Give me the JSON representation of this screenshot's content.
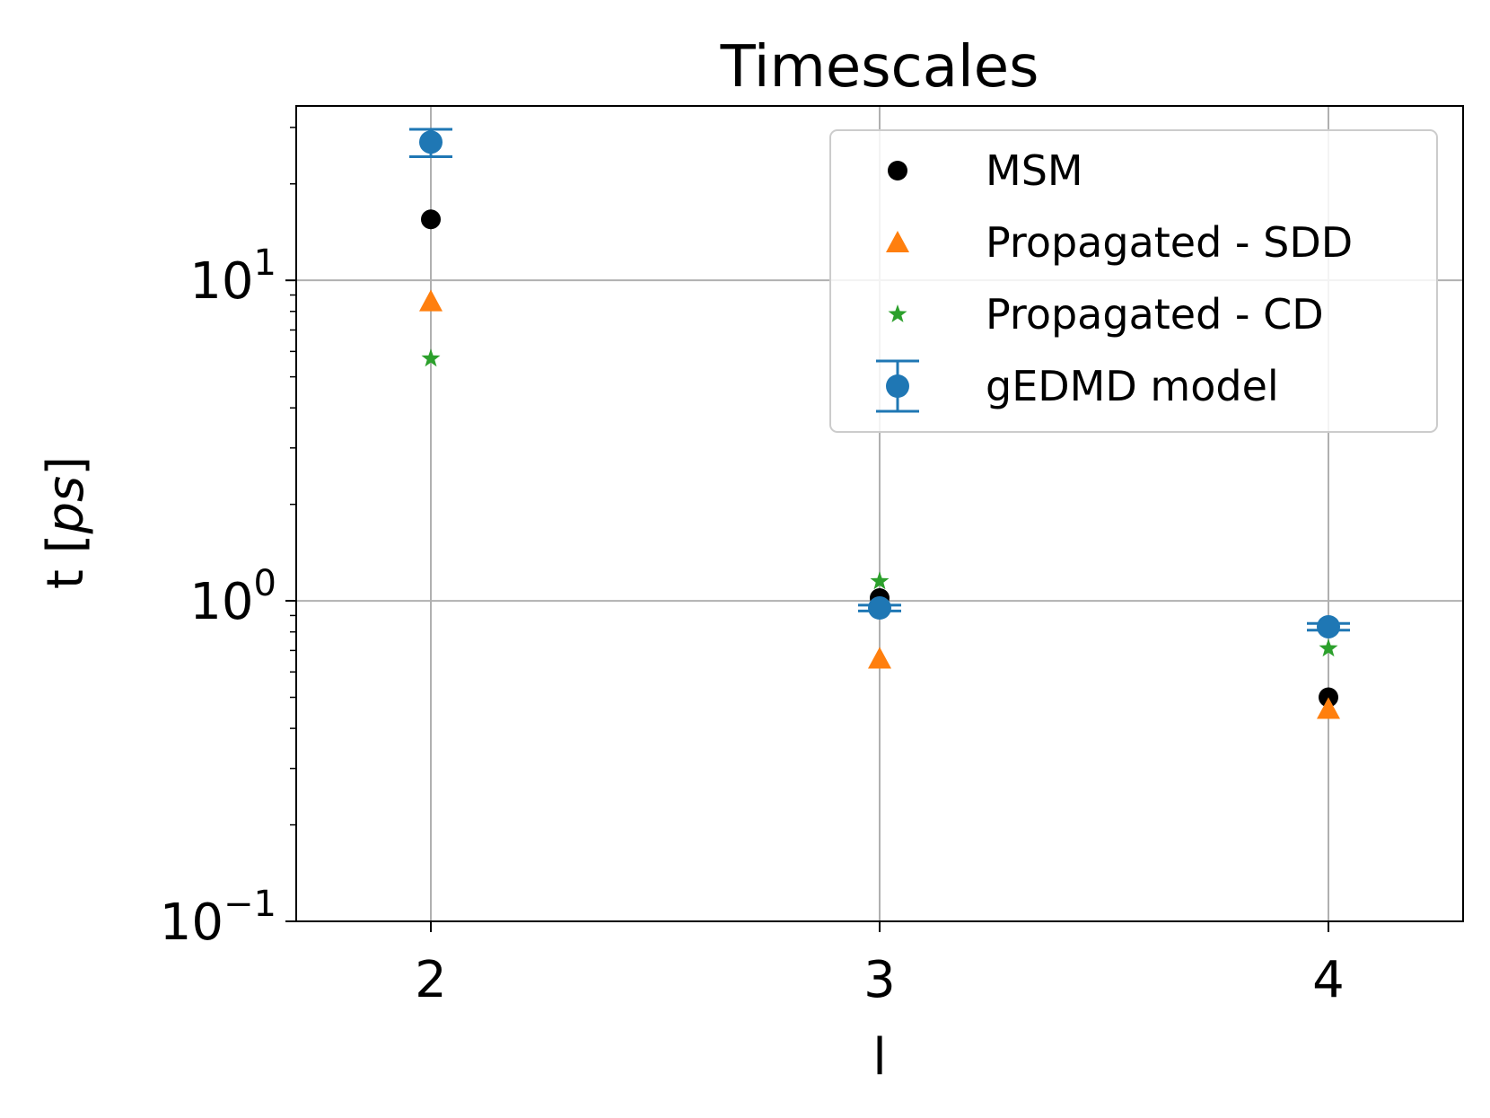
{
  "chart_data": {
    "type": "scatter",
    "title": "Timescales",
    "xlabel": "l",
    "ylabel_plain": "t [",
    "ylabel_italic": "ps",
    "ylabel_close": "]",
    "x_ticks": [
      2,
      3,
      4
    ],
    "x_tick_labels": [
      "2",
      "3",
      "4"
    ],
    "xlim": [
      1.7,
      4.3
    ],
    "y_scale": "log",
    "ylim": [
      0.1,
      35
    ],
    "y_major_ticks": [
      {
        "value": 0.1,
        "base": "10",
        "exp": "−1"
      },
      {
        "value": 1,
        "base": "10",
        "exp": "0"
      },
      {
        "value": 10,
        "base": "10",
        "exp": "1"
      }
    ],
    "grid": true,
    "legend_position": "upper right",
    "series": [
      {
        "name": "MSM",
        "marker": "circle",
        "color": "#000000",
        "x": [
          2,
          3,
          4
        ],
        "y": [
          15.5,
          1.02,
          0.5
        ]
      },
      {
        "name": "Propagated - SDD",
        "marker": "triangle",
        "color": "#ff7f0e",
        "x": [
          2,
          3,
          4
        ],
        "y": [
          8.6,
          0.66,
          0.46
        ]
      },
      {
        "name": "Propagated - CD",
        "marker": "star",
        "color": "#2ca02c",
        "x": [
          2,
          3,
          4
        ],
        "y": [
          5.7,
          1.15,
          0.71
        ]
      },
      {
        "name": "gEDMD model",
        "marker": "circle-errorbar",
        "color": "#1f77b4",
        "x": [
          2,
          3,
          4
        ],
        "y": [
          27.0,
          0.95,
          0.83
        ],
        "yerr_low": [
          24.3,
          0.93,
          0.81
        ],
        "yerr_high": [
          29.6,
          0.97,
          0.85
        ]
      }
    ]
  }
}
